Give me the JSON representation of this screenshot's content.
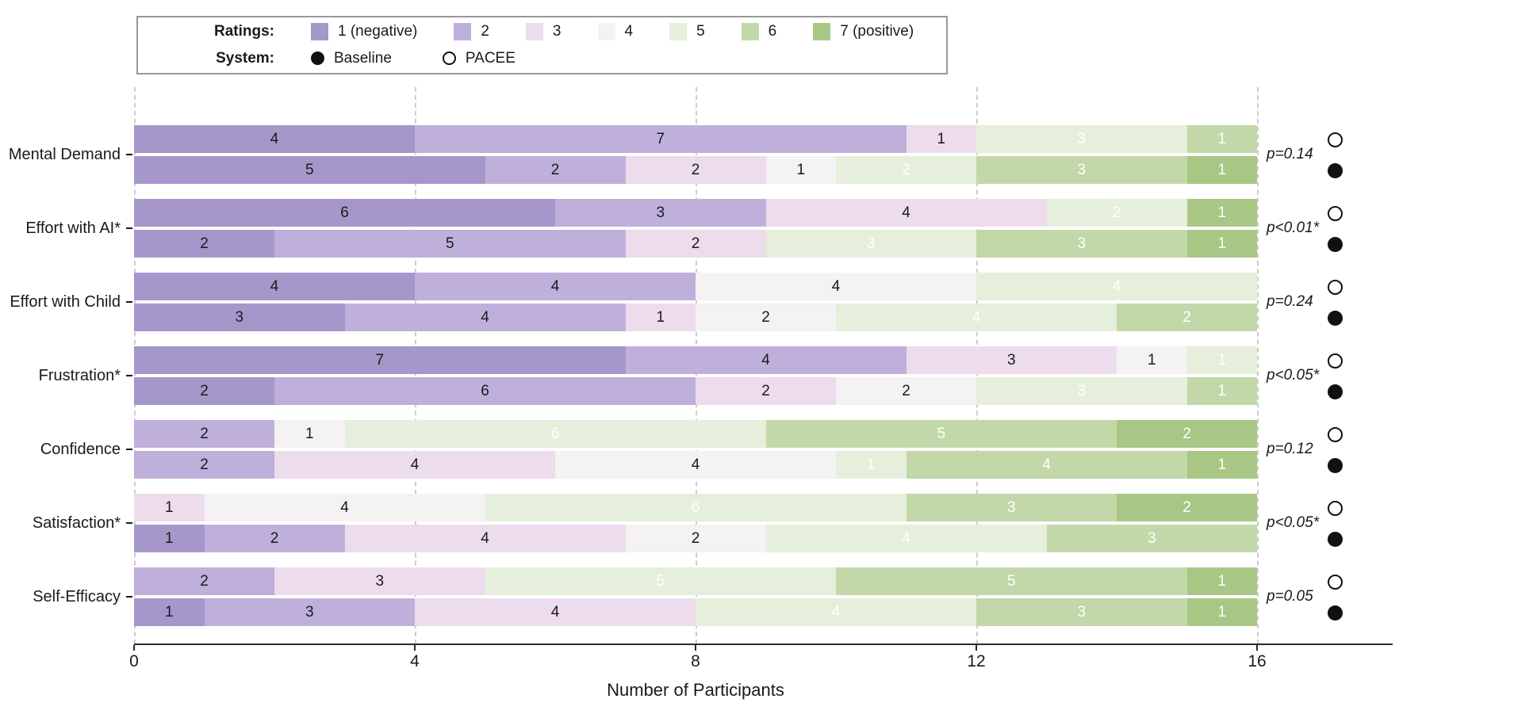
{
  "legend": {
    "ratings_title": "Ratings:",
    "system_title": "System:",
    "system_items": [
      {
        "label": "Baseline",
        "marker": "filled-circle"
      },
      {
        "label": "PACEE",
        "marker": "open-circle"
      }
    ]
  },
  "chart_data": {
    "type": "bar",
    "subtype": "horizontal-stacked-likert",
    "title": "",
    "xlabel": "Number of Participants",
    "ylabel": "",
    "xlim": [
      0,
      16
    ],
    "x_ticks": [
      0,
      4,
      8,
      12,
      16
    ],
    "grid": "vertical-dashed",
    "n_participants": 16,
    "rating_levels": [
      {
        "label": "1 (negative)",
        "color": "#a597ca",
        "number_color": "#1a1a1a"
      },
      {
        "label": "2",
        "color": "#beb0da",
        "number_color": "#1a1a1a"
      },
      {
        "label": "3",
        "color": "#ecdcec",
        "number_color": "#1a1a1a"
      },
      {
        "label": "4",
        "color": "#f4f2f3",
        "number_color": "#1a1a1a"
      },
      {
        "label": "5",
        "color": "#e5efdc",
        "number_color": "#ffffff"
      },
      {
        "label": "6",
        "color": "#c2d8a8",
        "number_color": "#ffffff"
      },
      {
        "label": "7 (positive)",
        "color": "#a8c785",
        "number_color": "#ffffff"
      }
    ],
    "systems": [
      {
        "name": "PACEE",
        "marker": "open-circle"
      },
      {
        "name": "Baseline",
        "marker": "filled-circle"
      }
    ],
    "measures": [
      {
        "name": "Mental Demand",
        "p_value": "p=0.14",
        "PACEE": [
          4,
          7,
          1,
          0,
          3,
          1,
          0
        ],
        "Baseline": [
          5,
          2,
          2,
          1,
          2,
          3,
          1
        ]
      },
      {
        "name": "Effort with AI*",
        "p_value": "p<0.01*",
        "PACEE": [
          6,
          3,
          4,
          0,
          2,
          0,
          1
        ],
        "Baseline": [
          2,
          5,
          2,
          0,
          3,
          3,
          1
        ]
      },
      {
        "name": "Effort with Child",
        "p_value": "p=0.24",
        "PACEE": [
          4,
          4,
          0,
          4,
          4,
          0,
          0
        ],
        "Baseline": [
          3,
          4,
          1,
          2,
          4,
          2,
          0
        ]
      },
      {
        "name": "Frustration*",
        "p_value": "p<0.05*",
        "PACEE": [
          7,
          4,
          3,
          1,
          1,
          0,
          0
        ],
        "Baseline": [
          2,
          6,
          2,
          2,
          3,
          1,
          0
        ]
      },
      {
        "name": "Confidence",
        "p_value": "p=0.12",
        "PACEE": [
          0,
          2,
          0,
          1,
          6,
          5,
          2
        ],
        "Baseline": [
          0,
          2,
          4,
          4,
          1,
          4,
          1
        ]
      },
      {
        "name": "Satisfaction*",
        "p_value": "p<0.05*",
        "PACEE": [
          0,
          0,
          1,
          4,
          6,
          3,
          2
        ],
        "Baseline": [
          1,
          2,
          4,
          2,
          4,
          3,
          0
        ]
      },
      {
        "name": "Self-Efficacy",
        "p_value": "p=0.05",
        "PACEE": [
          0,
          2,
          3,
          0,
          5,
          5,
          1
        ],
        "Baseline": [
          1,
          3,
          4,
          0,
          4,
          3,
          1
        ]
      }
    ]
  }
}
